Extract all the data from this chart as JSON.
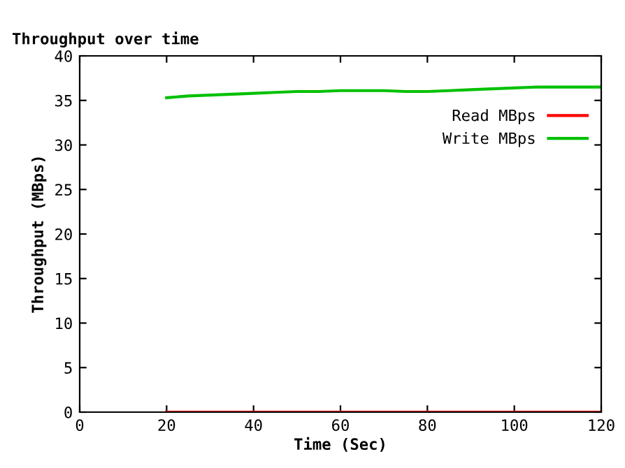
{
  "chart_data": {
    "type": "line",
    "title": "Throughput over time",
    "xlabel": "Time (Sec)",
    "ylabel": "Throughput (MBps)",
    "x": [
      20,
      25,
      30,
      35,
      40,
      45,
      50,
      55,
      60,
      65,
      70,
      75,
      80,
      85,
      90,
      95,
      100,
      105,
      110,
      115,
      120
    ],
    "series": [
      {
        "name": "Read MBps",
        "color": "#ff0000",
        "values": [
          0,
          0,
          0,
          0,
          0,
          0,
          0,
          0,
          0,
          0,
          0,
          0,
          0,
          0,
          0,
          0,
          0,
          0,
          0,
          0,
          0
        ]
      },
      {
        "name": "Write MBps",
        "color": "#00c000",
        "values": [
          35.3,
          35.5,
          35.6,
          35.7,
          35.8,
          35.9,
          36.0,
          36.0,
          36.1,
          36.1,
          36.1,
          36.0,
          36.0,
          36.1,
          36.2,
          36.3,
          36.4,
          36.5,
          36.5,
          36.5,
          36.5
        ]
      }
    ],
    "xlim": [
      0,
      120
    ],
    "ylim": [
      0,
      40
    ],
    "xticks": [
      0,
      20,
      40,
      60,
      80,
      100,
      120
    ],
    "yticks": [
      0,
      5,
      10,
      15,
      20,
      25,
      30,
      35,
      40
    ],
    "grid": false,
    "legend": "top right",
    "marker": "none",
    "line_style": "solid"
  }
}
